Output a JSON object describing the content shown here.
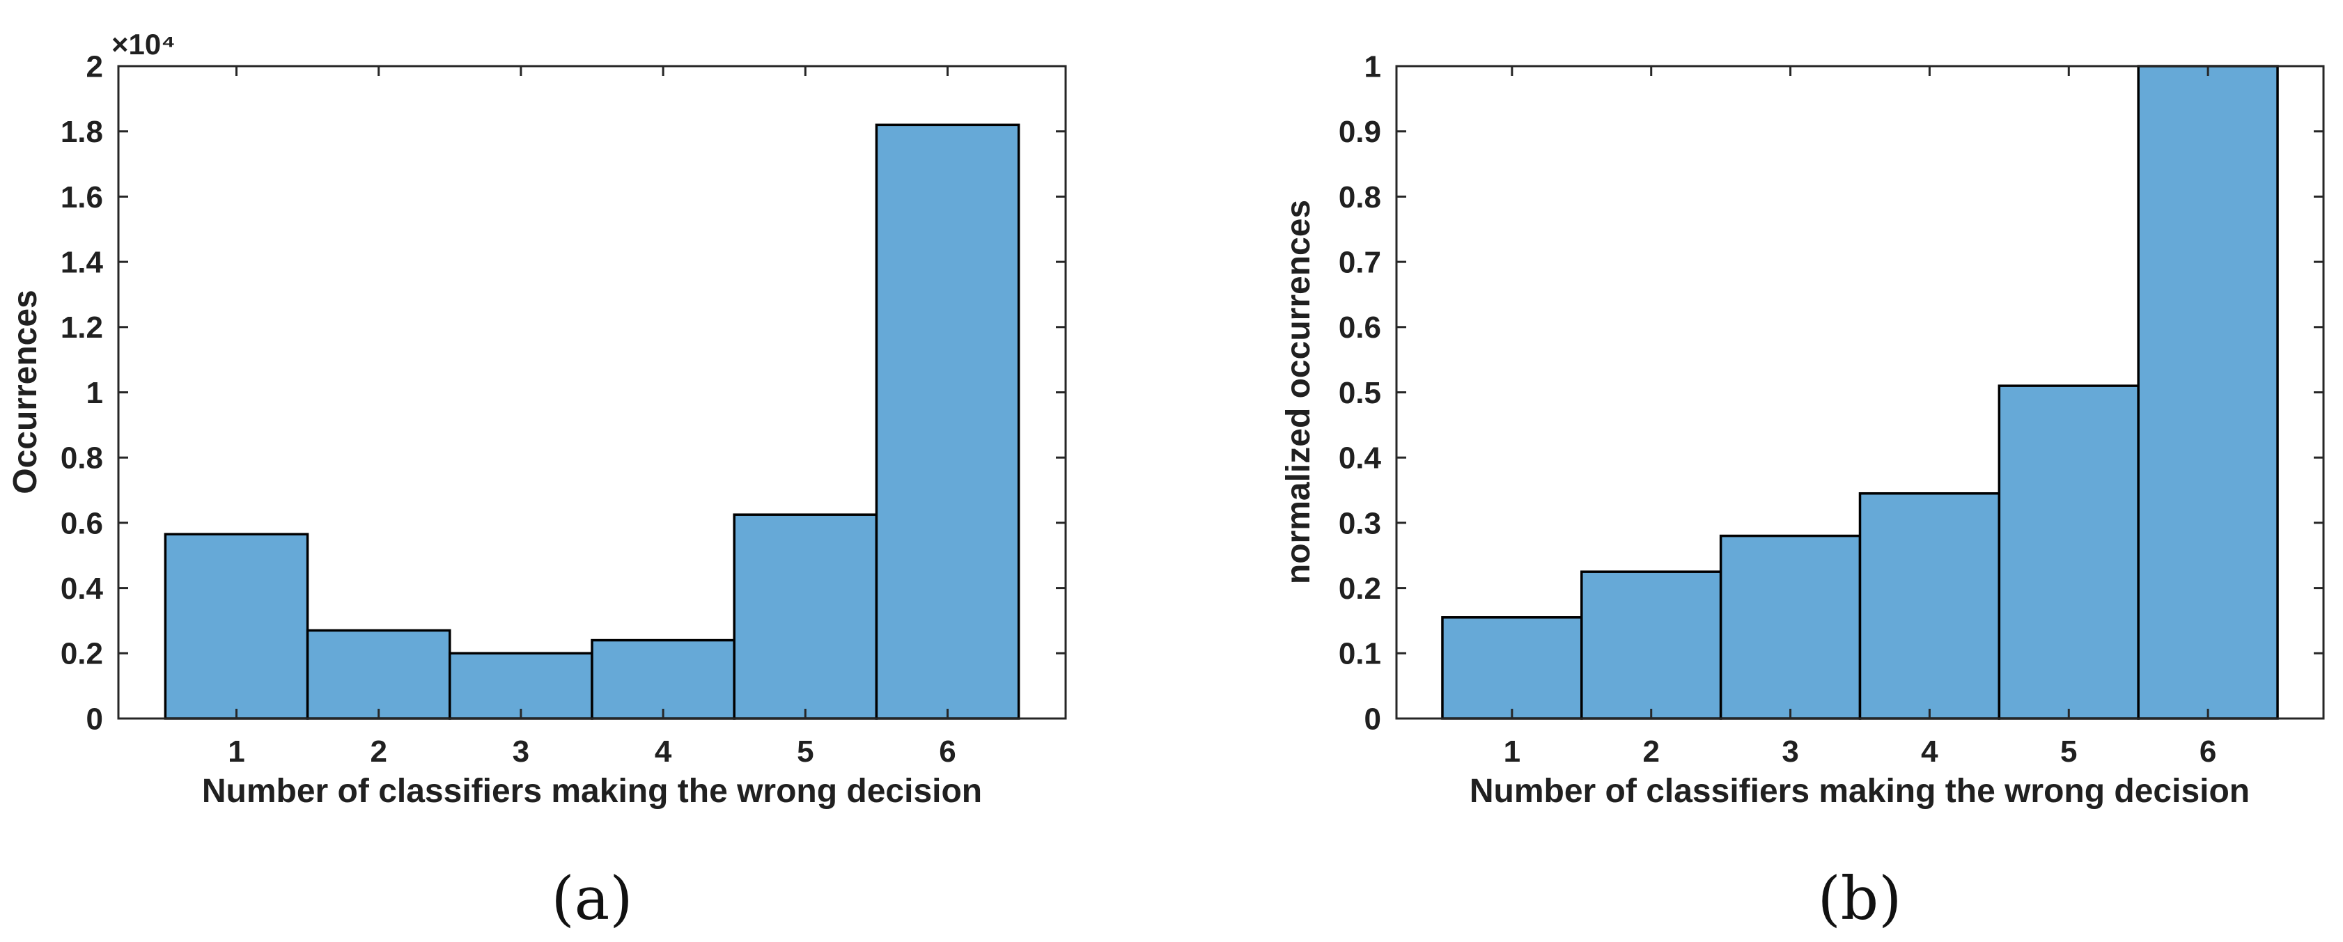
{
  "figure": {
    "background_color": "#ffffff",
    "bar_fill_color": "#66A9D7",
    "bar_edge_color": "#000000",
    "axis_color": "#262626",
    "text_color": "#202020"
  },
  "chart_data": [
    {
      "panel": "a",
      "type": "bar",
      "style": "histogram",
      "caption": "(a)",
      "title": "",
      "xlabel": "Number of classifiers making the wrong decision",
      "ylabel": "Occurrences",
      "y_axis_multiplier": "×10⁴",
      "categories": [
        1,
        2,
        3,
        4,
        5,
        6
      ],
      "values": [
        0.565,
        0.27,
        0.2,
        0.24,
        0.625,
        1.82
      ],
      "values_unit": "occurrences × 10^4",
      "xlim": [
        0.17,
        6.83
      ],
      "ylim": [
        0,
        2
      ],
      "xticks": [
        1,
        2,
        3,
        4,
        5,
        6
      ],
      "ytick_values": [
        0,
        0.2,
        0.4,
        0.6,
        0.8,
        1,
        1.2,
        1.4,
        1.6,
        1.8,
        2
      ],
      "ytick_labels": [
        "0",
        "0.2",
        "0.4",
        "0.6",
        "0.8",
        "1",
        "1.2",
        "1.4",
        "1.6",
        "1.8",
        "2"
      ],
      "bar_bin_width": 1,
      "grid": false,
      "legend": null
    },
    {
      "panel": "b",
      "type": "bar",
      "style": "histogram",
      "caption": "(b)",
      "title": "",
      "xlabel": "Number of classifiers making the wrong decision",
      "ylabel": "normalized occurrences",
      "y_axis_multiplier": "",
      "categories": [
        1,
        2,
        3,
        4,
        5,
        6
      ],
      "values": [
        0.155,
        0.225,
        0.28,
        0.345,
        0.51,
        1
      ],
      "values_unit": "fraction of total",
      "xlim": [
        0.17,
        6.83
      ],
      "ylim": [
        0,
        1
      ],
      "xticks": [
        1,
        2,
        3,
        4,
        5,
        6
      ],
      "ytick_values": [
        0,
        0.1,
        0.2,
        0.3,
        0.4,
        0.5,
        0.6,
        0.7,
        0.8,
        0.9,
        1
      ],
      "ytick_labels": [
        "0",
        "0.1",
        "0.2",
        "0.3",
        "0.4",
        "0.5",
        "0.6",
        "0.7",
        "0.8",
        "0.9",
        "1"
      ],
      "bar_bin_width": 1,
      "grid": false,
      "legend": null
    }
  ]
}
